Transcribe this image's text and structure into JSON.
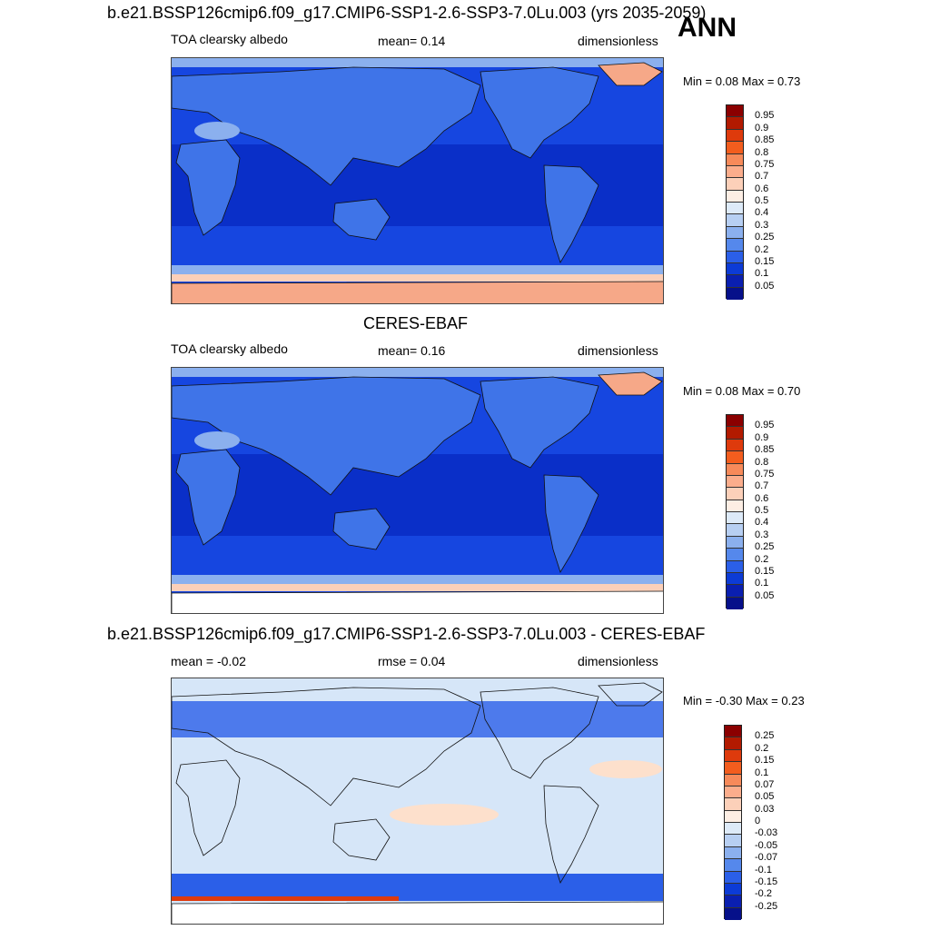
{
  "panels": [
    {
      "title": "b.e21.BSSP126cmip6.f09_g17.CMIP6-SSP1-2.6-SSP3-7.0Lu.003 (yrs 2035-2059)",
      "left_label": "TOA clearsky albedo",
      "center_label": "mean=   0.14",
      "right_label": "dimensionless",
      "minmax": "Min =   0.08 Max =   0.73",
      "colorbar": {
        "labels": [
          "0.95",
          "0.9",
          "0.85",
          "0.8",
          "0.75",
          "0.7",
          "0.6",
          "0.5",
          "0.4",
          "0.3",
          "0.25",
          "0.2",
          "0.15",
          "0.1",
          "0.05"
        ],
        "colors": [
          "#8b0000",
          "#b21a00",
          "#de3a0c",
          "#f35d1e",
          "#f78a5a",
          "#fbad8c",
          "#fcd0b9",
          "#fdeee4",
          "#ddeaf8",
          "#b7cff2",
          "#8bb0ee",
          "#5588ec",
          "#2b5fe8",
          "#0c3bd6",
          "#0a1fb0",
          "#06108a"
        ]
      }
    },
    {
      "title": "CERES-EBAF",
      "left_label": "TOA clearsky albedo",
      "center_label": "mean=   0.16",
      "right_label": "dimensionless",
      "minmax": "Min =   0.08 Max =   0.70",
      "colorbar": {
        "labels": [
          "0.95",
          "0.9",
          "0.85",
          "0.8",
          "0.75",
          "0.7",
          "0.6",
          "0.5",
          "0.4",
          "0.3",
          "0.25",
          "0.2",
          "0.15",
          "0.1",
          "0.05"
        ],
        "colors": [
          "#8b0000",
          "#b21a00",
          "#de3a0c",
          "#f35d1e",
          "#f78a5a",
          "#fbad8c",
          "#fcd0b9",
          "#fdeee4",
          "#ddeaf8",
          "#b7cff2",
          "#8bb0ee",
          "#5588ec",
          "#2b5fe8",
          "#0c3bd6",
          "#0a1fb0",
          "#06108a"
        ]
      }
    },
    {
      "title": "b.e21.BSSP126cmip6.f09_g17.CMIP6-SSP1-2.6-SSP3-7.0Lu.003 - CERES-EBAF",
      "left_label": "mean =  -0.02",
      "center_label": "rmse =   0.04",
      "right_label": "dimensionless",
      "minmax": "Min =  -0.30 Max =   0.23",
      "colorbar": {
        "labels": [
          "0.25",
          "0.2",
          "0.15",
          "0.1",
          "0.07",
          "0.05",
          "0.03",
          "0",
          "-0.03",
          "-0.05",
          "-0.07",
          "-0.1",
          "-0.15",
          "-0.2",
          "-0.25"
        ],
        "colors": [
          "#8b0000",
          "#b21a00",
          "#de3a0c",
          "#f35d1e",
          "#f78a5a",
          "#fbad8c",
          "#fcd0b9",
          "#fdeee4",
          "#ddeaf8",
          "#b7cff2",
          "#8bb0ee",
          "#5588ec",
          "#2b5fe8",
          "#0c3bd6",
          "#0a1fb0",
          "#06108a"
        ]
      }
    }
  ],
  "season": "ANN",
  "map_colors": {
    "ocean_tropics": "#0a2fc8",
    "ocean_mid": "#1646e0",
    "land": "#3f74e8",
    "land_bright": "#8bb0ee",
    "ice_high": "#f6a888",
    "ice_mid": "#fcd0b9",
    "diff_bg": "#d6e6f8",
    "diff_pos": "#fde0cc",
    "diff_neg": "#2b5fe8"
  }
}
